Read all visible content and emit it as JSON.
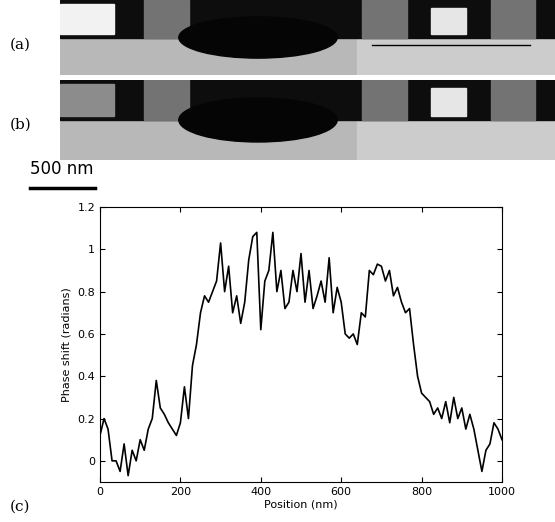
{
  "chart_data": {
    "type": "line",
    "panel_label": "(c)",
    "x_label": "Position (nm)",
    "y_label": "Phase shift (radians)",
    "x": [
      0,
      10,
      20,
      30,
      40,
      50,
      60,
      70,
      80,
      90,
      100,
      110,
      120,
      130,
      140,
      150,
      160,
      170,
      180,
      190,
      200,
      210,
      220,
      230,
      240,
      250,
      260,
      270,
      280,
      290,
      300,
      310,
      320,
      330,
      340,
      350,
      360,
      370,
      380,
      390,
      400,
      410,
      420,
      430,
      440,
      450,
      460,
      470,
      480,
      490,
      500,
      510,
      520,
      530,
      540,
      550,
      560,
      570,
      580,
      590,
      600,
      610,
      620,
      630,
      640,
      650,
      660,
      670,
      680,
      690,
      700,
      710,
      720,
      730,
      740,
      750,
      760,
      770,
      780,
      790,
      800,
      810,
      820,
      830,
      840,
      850,
      860,
      870,
      880,
      890,
      900,
      910,
      920,
      930,
      940,
      950,
      960,
      970,
      980,
      990,
      1000
    ],
    "values": [
      0.12,
      0.2,
      0.15,
      0.0,
      0.0,
      -0.05,
      0.08,
      -0.07,
      0.05,
      0.0,
      0.1,
      0.05,
      0.15,
      0.2,
      0.38,
      0.25,
      0.22,
      0.18,
      0.15,
      0.12,
      0.18,
      0.35,
      0.2,
      0.45,
      0.55,
      0.7,
      0.78,
      0.75,
      0.8,
      0.85,
      1.03,
      0.8,
      0.92,
      0.7,
      0.78,
      0.65,
      0.75,
      0.95,
      1.06,
      1.08,
      0.62,
      0.85,
      0.9,
      1.08,
      0.8,
      0.9,
      0.72,
      0.75,
      0.9,
      0.8,
      0.98,
      0.75,
      0.9,
      0.72,
      0.78,
      0.85,
      0.75,
      0.96,
      0.7,
      0.82,
      0.75,
      0.6,
      0.58,
      0.6,
      0.55,
      0.7,
      0.68,
      0.9,
      0.88,
      0.93,
      0.92,
      0.85,
      0.9,
      0.78,
      0.82,
      0.75,
      0.7,
      0.72,
      0.55,
      0.4,
      0.32,
      0.3,
      0.28,
      0.22,
      0.25,
      0.2,
      0.28,
      0.18,
      0.3,
      0.2,
      0.25,
      0.15,
      0.22,
      0.15,
      0.05,
      -0.05,
      0.05,
      0.08,
      0.18,
      0.15,
      0.1
    ],
    "color": "#000000",
    "xlim": [
      0,
      1000
    ],
    "xticks": [
      0,
      200,
      400,
      600,
      800,
      1000
    ],
    "ylim": [
      -0.1,
      1.2
    ],
    "yticks": [
      0,
      0.2,
      0.4,
      0.6,
      0.8,
      1,
      1.2
    ]
  },
  "images": [
    {
      "label": "(a)"
    },
    {
      "label": "(b)"
    }
  ],
  "scale_bar": {
    "label": "500 nm"
  }
}
